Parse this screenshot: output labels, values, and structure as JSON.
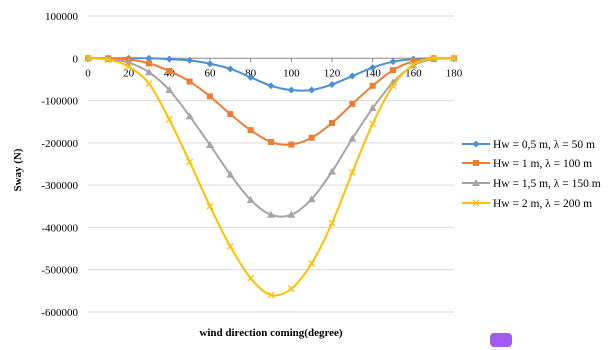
{
  "chart_data": {
    "type": "line",
    "xlabel": "wind direction coming(degree)",
    "ylabel": "Sway (N)",
    "xlim": [
      0,
      180
    ],
    "ylim": [
      -600000,
      100000
    ],
    "x_ticks": [
      "0",
      "20",
      "40",
      "60",
      "80",
      "100",
      "120",
      "140",
      "160",
      "180"
    ],
    "y_ticks": [
      "100000",
      "0",
      "-100000",
      "-200000",
      "-300000",
      "-400000",
      "-500000",
      "-600000"
    ],
    "grid": "horizontal",
    "legend_position": "right",
    "x": [
      0,
      10,
      20,
      30,
      40,
      50,
      60,
      70,
      80,
      90,
      100,
      110,
      120,
      130,
      140,
      150,
      160,
      170,
      180
    ],
    "series": [
      {
        "name": "Hw = 0,5 m, λ = 50 m",
        "color": "#4a90d9",
        "marker": "diamond",
        "values": [
          0,
          0,
          0,
          0,
          -2000,
          -5000,
          -13000,
          -25000,
          -45000,
          -65000,
          -75000,
          -75000,
          -62000,
          -42000,
          -22000,
          -8000,
          -2000,
          0,
          0
        ]
      },
      {
        "name": "Hw = 1 m, λ = 100 m",
        "color": "#ed7d31",
        "marker": "square",
        "values": [
          0,
          0,
          -3000,
          -12000,
          -30000,
          -55000,
          -90000,
          -132000,
          -170000,
          -198000,
          -204000,
          -188000,
          -153000,
          -108000,
          -65000,
          -28000,
          -7000,
          0,
          0
        ]
      },
      {
        "name": "Hw = 1,5 m, λ = 150 m",
        "color": "#a5a5a5",
        "marker": "triangle",
        "values": [
          0,
          -2000,
          -10000,
          -33000,
          -75000,
          -137000,
          -205000,
          -275000,
          -335000,
          -370000,
          -370000,
          -333000,
          -268000,
          -190000,
          -118000,
          -57000,
          -17000,
          -2000,
          0
        ]
      },
      {
        "name": "Hw = 2 m, λ = 200 m",
        "color": "#ffc000",
        "marker": "x",
        "values": [
          0,
          -3000,
          -20000,
          -60000,
          -145000,
          -245000,
          -350000,
          -445000,
          -520000,
          -560000,
          -545000,
          -485000,
          -390000,
          -270000,
          -155000,
          -65000,
          -15000,
          0,
          0
        ]
      }
    ]
  }
}
